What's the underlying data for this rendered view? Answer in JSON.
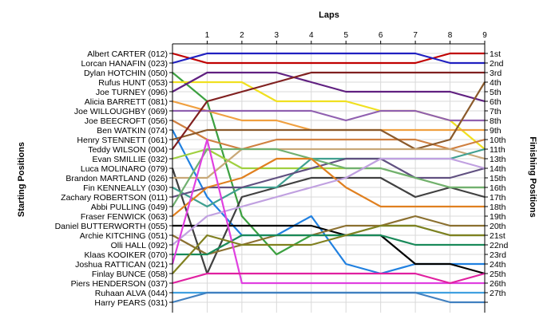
{
  "chart_data": {
    "type": "line",
    "title": "Laps",
    "ylabel_left": "Starting Positions",
    "ylabel_right": "Finishing Positions",
    "x": [
      0,
      1,
      2,
      3,
      4,
      5,
      6,
      7,
      8,
      9
    ],
    "x_tick_labels": [
      "1",
      "2",
      "3",
      "4",
      "5",
      "6",
      "7",
      "8",
      "9"
    ],
    "y_tick_labels_left": [
      "Albert CARTER (012)",
      "Lorcan HANAFIN (023)",
      "Dylan HOTCHIN (050)",
      "Rufus HUNT (053)",
      "Joe TURNEY (096)",
      "Alicia BARRETT (081)",
      "Joe WILLOUGHBY (069)",
      "Joe BEECROFT (056)",
      "Ben WATKIN (074)",
      "Henry STENNETT (061)",
      "Teddy WILSON (004)",
      "Evan SMILLIE (032)",
      "Luca MOLINARO (079)",
      "Brandon MARTLAND (026)",
      "Fin KENNEALLY (030)",
      "Zachary ROBERTSON (011)",
      "Abbi PULLING (049)",
      "Fraser FENWICK (063)",
      "Daniel BUTTERWORTH (055)",
      "Archie KITCHING (051)",
      "Olli HALL (092)",
      "Klaas KOOIKER (070)",
      "Joshua RATTICAN (021)",
      "Finlay BUNCE (058)",
      "Piers HENDERSON (037)",
      "Ruhaan ALVA (044)",
      "Harry PEARS (031)"
    ],
    "y_tick_labels_right": [
      "1st",
      "2nd",
      "3rd",
      "4th",
      "5th",
      "6th",
      "7th",
      "8th",
      "9th",
      "10th",
      "11th",
      "13th",
      "14th",
      "15th",
      "16th",
      "17th",
      "18th",
      "19th",
      "20th",
      "21st",
      "22nd",
      "23rd",
      "24th",
      "25th",
      "26th",
      "27th"
    ],
    "ylim": [
      1,
      27
    ],
    "series": [
      {
        "color": "#c00000",
        "values": [
          1,
          2,
          2,
          2,
          2,
          2,
          2,
          2,
          1,
          1
        ]
      },
      {
        "color": "#2020c0",
        "values": [
          2,
          1,
          1,
          1,
          1,
          1,
          1,
          1,
          2,
          2
        ]
      },
      {
        "color": "#3ca040",
        "values": [
          3,
          6,
          18,
          22,
          20,
          20,
          19,
          19,
          20,
          20
        ]
      },
      {
        "color": "#f0e020",
        "values": [
          4,
          4,
          4,
          6,
          6,
          6,
          7,
          7,
          8,
          11
        ]
      },
      {
        "color": "#602080",
        "values": [
          5,
          3,
          3,
          3,
          4,
          5,
          5,
          5,
          5,
          6
        ]
      },
      {
        "color": "#f0a040",
        "values": [
          6,
          7,
          8,
          8,
          9,
          9,
          9,
          9,
          9,
          9
        ]
      },
      {
        "color": "#9060b0",
        "values": [
          7,
          7,
          7,
          7,
          7,
          8,
          7,
          7,
          8,
          8
        ]
      },
      {
        "color": "#d08040",
        "values": [
          8,
          10,
          11,
          10,
          10,
          10,
          10,
          10,
          11,
          10
        ]
      },
      {
        "color": "#2080e0",
        "values": [
          9,
          16,
          20,
          20,
          18,
          23,
          24,
          23,
          23,
          23
        ]
      },
      {
        "color": "#8b5a2b",
        "values": [
          10,
          9,
          9,
          9,
          9,
          9,
          9,
          11,
          10,
          4
        ]
      },
      {
        "color": "#802020",
        "values": [
          11,
          6,
          5,
          4,
          3,
          3,
          3,
          3,
          3,
          3
        ]
      },
      {
        "color": "#a0d040",
        "values": [
          12,
          11,
          13,
          13,
          13,
          13,
          13,
          14,
          15,
          15
        ]
      },
      {
        "color": "#404040",
        "values": [
          13,
          24,
          16,
          15,
          14,
          14,
          14,
          16,
          15,
          16
        ]
      },
      {
        "color": "#c8a878",
        "values": [
          14,
          14,
          11,
          11,
          11,
          11,
          11,
          11,
          11,
          12
        ]
      },
      {
        "color": "#40a090",
        "values": [
          15,
          17,
          15,
          15,
          12,
          12,
          12,
          12,
          12,
          11
        ]
      },
      {
        "color": "#605080",
        "values": [
          16,
          15,
          15,
          14,
          13,
          12,
          12,
          14,
          14,
          13
        ]
      },
      {
        "color": "#70b070",
        "values": [
          17,
          11,
          11,
          11,
          12,
          13,
          13,
          14,
          15,
          15
        ]
      },
      {
        "color": "#e08020",
        "values": [
          18,
          15,
          14,
          12,
          12,
          15,
          17,
          17,
          17,
          17
        ]
      },
      {
        "color": "#000000",
        "values": [
          19,
          19,
          19,
          19,
          19,
          20,
          20,
          23,
          23,
          24
        ]
      },
      {
        "color": "#8b7030",
        "values": [
          20,
          22,
          21,
          20,
          20,
          19,
          19,
          18,
          19,
          19
        ]
      },
      {
        "color": "#c0a0e0",
        "values": [
          21,
          18,
          17,
          16,
          15,
          14,
          12,
          12,
          12,
          13
        ]
      },
      {
        "color": "#1a8a5a",
        "values": [
          22,
          22,
          20,
          20,
          20,
          20,
          20,
          21,
          21,
          21
        ]
      },
      {
        "color": "#e040e0",
        "values": [
          23,
          10,
          25,
          25,
          25,
          25,
          25,
          25,
          25,
          25
        ]
      },
      {
        "color": "#808020",
        "values": [
          24,
          20,
          21,
          21,
          21,
          20,
          19,
          19,
          20,
          20
        ]
      },
      {
        "color": "#e020a0",
        "values": [
          25,
          24,
          24,
          24,
          24,
          24,
          24,
          24,
          25,
          24
        ]
      },
      {
        "color": "#40a0e0",
        "values": [
          26,
          26,
          26,
          26,
          26,
          26,
          26,
          26,
          26,
          26
        ]
      },
      {
        "color": "#4080c0",
        "values": [
          27,
          26,
          26,
          26,
          26,
          26,
          26,
          26,
          27,
          27
        ]
      }
    ]
  }
}
